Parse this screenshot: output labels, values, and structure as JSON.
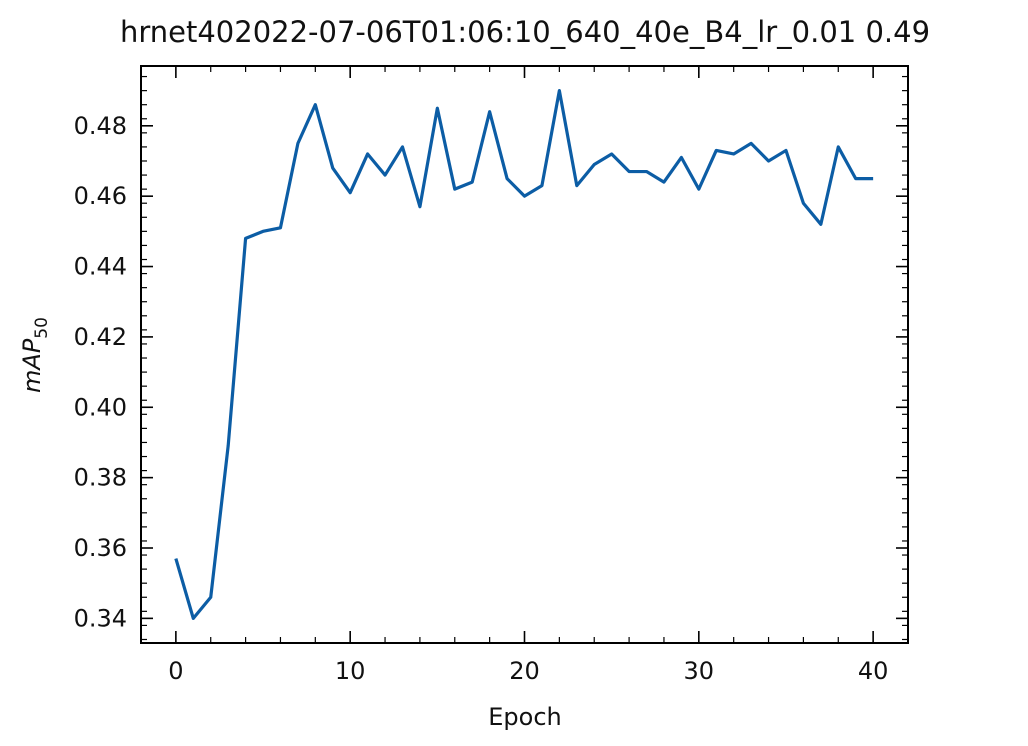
{
  "chart_data": {
    "type": "line",
    "title": "hrnet402022-07-06T01:06:10_640_40e_B4_lr_0.01 0.49",
    "xlabel": "Epoch",
    "ylabel_main": "mAP",
    "ylabel_sub": "50",
    "xlim": [
      -2,
      42
    ],
    "ylim": [
      0.333,
      0.497
    ],
    "xticks": [
      0,
      10,
      20,
      30,
      40
    ],
    "xtick_labels": [
      "0",
      "10",
      "20",
      "30",
      "40"
    ],
    "yticks": [
      0.34,
      0.36,
      0.38,
      0.4,
      0.42,
      0.44,
      0.46,
      0.48
    ],
    "ytick_labels": [
      "0.34",
      "0.36",
      "0.38",
      "0.40",
      "0.42",
      "0.44",
      "0.46",
      "0.48"
    ],
    "grid": false,
    "line_color": "#0C5DA5",
    "series": [
      {
        "x": [
          0,
          1,
          2,
          3,
          4,
          5,
          6,
          7,
          8,
          9,
          10,
          11,
          12,
          13,
          14,
          15,
          16,
          17,
          18,
          19,
          20,
          21,
          22,
          23,
          24,
          25,
          26,
          27,
          28,
          29,
          30,
          31,
          32,
          33,
          34,
          35,
          36,
          37,
          38,
          39,
          40
        ],
        "values": [
          0.357,
          0.34,
          0.346,
          0.389,
          0.448,
          0.45,
          0.451,
          0.475,
          0.486,
          0.468,
          0.461,
          0.472,
          0.466,
          0.474,
          0.457,
          0.485,
          0.462,
          0.464,
          0.484,
          0.465,
          0.46,
          0.463,
          0.49,
          0.463,
          0.469,
          0.472,
          0.467,
          0.467,
          0.464,
          0.471,
          0.462,
          0.473,
          0.472,
          0.475,
          0.47,
          0.473,
          0.458,
          0.452,
          0.474,
          0.465,
          0.465
        ]
      }
    ]
  }
}
